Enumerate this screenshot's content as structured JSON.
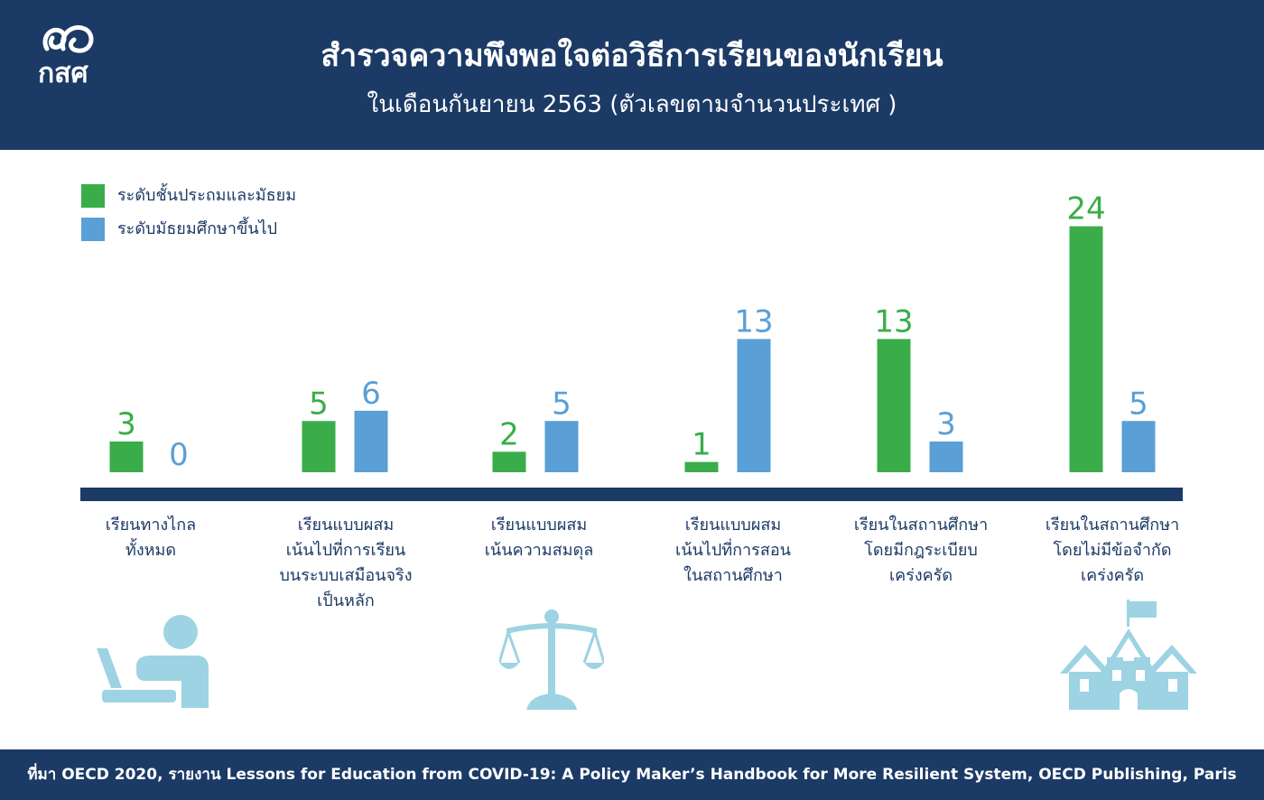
{
  "header": {
    "logo_text": "กสศ",
    "title": "สำรวจความพึงพอใจต่อวิธีการเรียนของนักเรียน",
    "subtitle": "ในเดือนกันยายน 2563 (ตัวเลขตามจำนวนประเทศ )"
  },
  "colors": {
    "primary_series": "#3aad4a",
    "secondary_series": "#5a9fd6",
    "navy": "#1b3a66",
    "illustration": "#9dd3e3"
  },
  "chart_data": {
    "type": "bar",
    "categories": [
      "เรียนทางไกล\nทั้งหมด",
      "เรียนแบบผสม\nเน้นไปที่การเรียน\nบนระบบเสมือนจริง\nเป็นหลัก",
      "เรียนแบบผสม\nเน้นความสมดุล",
      "เรียนแบบผสม\nเน้นไปที่การสอน\nในสถานศึกษา",
      "เรียนในสถานศึกษา\nโดยมีกฎระเบียบ\nเคร่งครัด",
      "เรียนในสถานศึกษา\nโดยไม่มีข้อจำกัด\nเคร่งครัด"
    ],
    "series": [
      {
        "name": "ระดับชั้นประถมและมัธยม",
        "color": "#3aad4a",
        "values": [
          3,
          5,
          2,
          1,
          13,
          24
        ]
      },
      {
        "name": "ระดับมัธยมศึกษาขึ้นไป",
        "color": "#5a9fd6",
        "values": [
          0,
          6,
          5,
          13,
          3,
          5
        ]
      }
    ],
    "ylim": [
      0,
      24
    ],
    "grid": false,
    "legend_position": "top-left",
    "data_labels": true
  },
  "illustrations": [
    "laptop-user-icon",
    "balance-scale-icon",
    "school-building-icon"
  ],
  "footer": {
    "source": "ที่มา OECD 2020, รายงาน Lessons for Education from COVID-19: A Policy Maker’s Handbook for More Resilient System, OECD Publishing, Paris"
  }
}
